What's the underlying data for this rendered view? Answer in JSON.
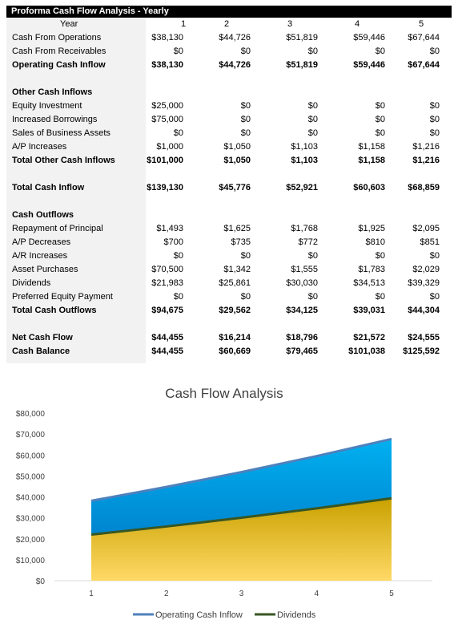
{
  "table": {
    "title": "Proforma Cash Flow Analysis - Yearly",
    "year_label": "Year",
    "years": [
      "1",
      "2",
      "3",
      "4",
      "5"
    ],
    "rows": [
      {
        "label": "Cash From Operations",
        "values": [
          "$38,130",
          "$44,726",
          "$51,819",
          "$59,446",
          "$67,644"
        ],
        "bold": false
      },
      {
        "label": "Cash From Receivables",
        "values": [
          "$0",
          "$0",
          "$0",
          "$0",
          "$0"
        ],
        "bold": false
      },
      {
        "label": "Operating Cash Inflow",
        "values": [
          "$38,130",
          "$44,726",
          "$51,819",
          "$59,446",
          "$67,644"
        ],
        "bold": true
      },
      {
        "label": "",
        "values": [],
        "bold": false
      },
      {
        "label": "Other Cash Inflows",
        "values": [],
        "bold": true
      },
      {
        "label": "Equity Investment",
        "values": [
          "$25,000",
          "$0",
          "$0",
          "$0",
          "$0"
        ],
        "bold": false
      },
      {
        "label": "Increased Borrowings",
        "values": [
          "$75,000",
          "$0",
          "$0",
          "$0",
          "$0"
        ],
        "bold": false
      },
      {
        "label": "Sales of Business Assets",
        "values": [
          "$0",
          "$0",
          "$0",
          "$0",
          "$0"
        ],
        "bold": false
      },
      {
        "label": "A/P Increases",
        "values": [
          "$1,000",
          "$1,050",
          "$1,103",
          "$1,158",
          "$1,216"
        ],
        "bold": false
      },
      {
        "label": "Total Other Cash Inflows",
        "values": [
          "$101,000",
          "$1,050",
          "$1,103",
          "$1,158",
          "$1,216"
        ],
        "bold": true
      },
      {
        "label": "",
        "values": [],
        "bold": false
      },
      {
        "label": "Total Cash Inflow",
        "values": [
          "$139,130",
          "$45,776",
          "$52,921",
          "$60,603",
          "$68,859"
        ],
        "bold": true
      },
      {
        "label": "",
        "values": [],
        "bold": false
      },
      {
        "label": "Cash Outflows",
        "values": [],
        "bold": true
      },
      {
        "label": "Repayment of Principal",
        "values": [
          "$1,493",
          "$1,625",
          "$1,768",
          "$1,925",
          "$2,095"
        ],
        "bold": false
      },
      {
        "label": "A/P Decreases",
        "values": [
          "$700",
          "$735",
          "$772",
          "$810",
          "$851"
        ],
        "bold": false
      },
      {
        "label": "A/R Increases",
        "values": [
          "$0",
          "$0",
          "$0",
          "$0",
          "$0"
        ],
        "bold": false
      },
      {
        "label": "Asset Purchases",
        "values": [
          "$70,500",
          "$1,342",
          "$1,555",
          "$1,783",
          "$2,029"
        ],
        "bold": false
      },
      {
        "label": "Dividends",
        "values": [
          "$21,983",
          "$25,861",
          "$30,030",
          "$34,513",
          "$39,329"
        ],
        "bold": false
      },
      {
        "label": "Preferred Equity Payment",
        "values": [
          "$0",
          "$0",
          "$0",
          "$0",
          "$0"
        ],
        "bold": false
      },
      {
        "label": "Total Cash Outflows",
        "values": [
          "$94,675",
          "$29,562",
          "$34,125",
          "$39,031",
          "$44,304"
        ],
        "bold": true
      },
      {
        "label": "",
        "values": [],
        "bold": false
      },
      {
        "label": "Net Cash Flow",
        "values": [
          "$44,455",
          "$16,214",
          "$18,796",
          "$21,572",
          "$24,555"
        ],
        "bold": true
      },
      {
        "label": "Cash Balance",
        "values": [
          "$44,455",
          "$60,669",
          "$79,465",
          "$101,038",
          "$125,592"
        ],
        "bold": true
      }
    ]
  },
  "chart_data": {
    "type": "area",
    "title": "Cash Flow Analysis",
    "xlabel": "",
    "ylabel": "",
    "x": [
      "1",
      "2",
      "3",
      "4",
      "5"
    ],
    "ylim": [
      0,
      80000
    ],
    "yticks": [
      0,
      10000,
      20000,
      30000,
      40000,
      50000,
      60000,
      70000,
      80000
    ],
    "ytick_labels": [
      "$0",
      "$10,000",
      "$20,000",
      "$30,000",
      "$40,000",
      "$50,000",
      "$60,000",
      "$70,000",
      "$80,000"
    ],
    "grid": false,
    "legend_position": "bottom",
    "series": [
      {
        "name": "Operating Cash Inflow",
        "values": [
          38130,
          44726,
          51819,
          59446,
          67644
        ],
        "line_color": "#4f81bd",
        "fill_top": "#00b0f0",
        "fill_bottom": "#0070c0"
      },
      {
        "name": "Dividends",
        "values": [
          21983,
          25861,
          30030,
          34513,
          39329
        ],
        "line_color": "#375623",
        "fill_top": "#c9a100",
        "fill_bottom": "#ffd966"
      }
    ]
  }
}
